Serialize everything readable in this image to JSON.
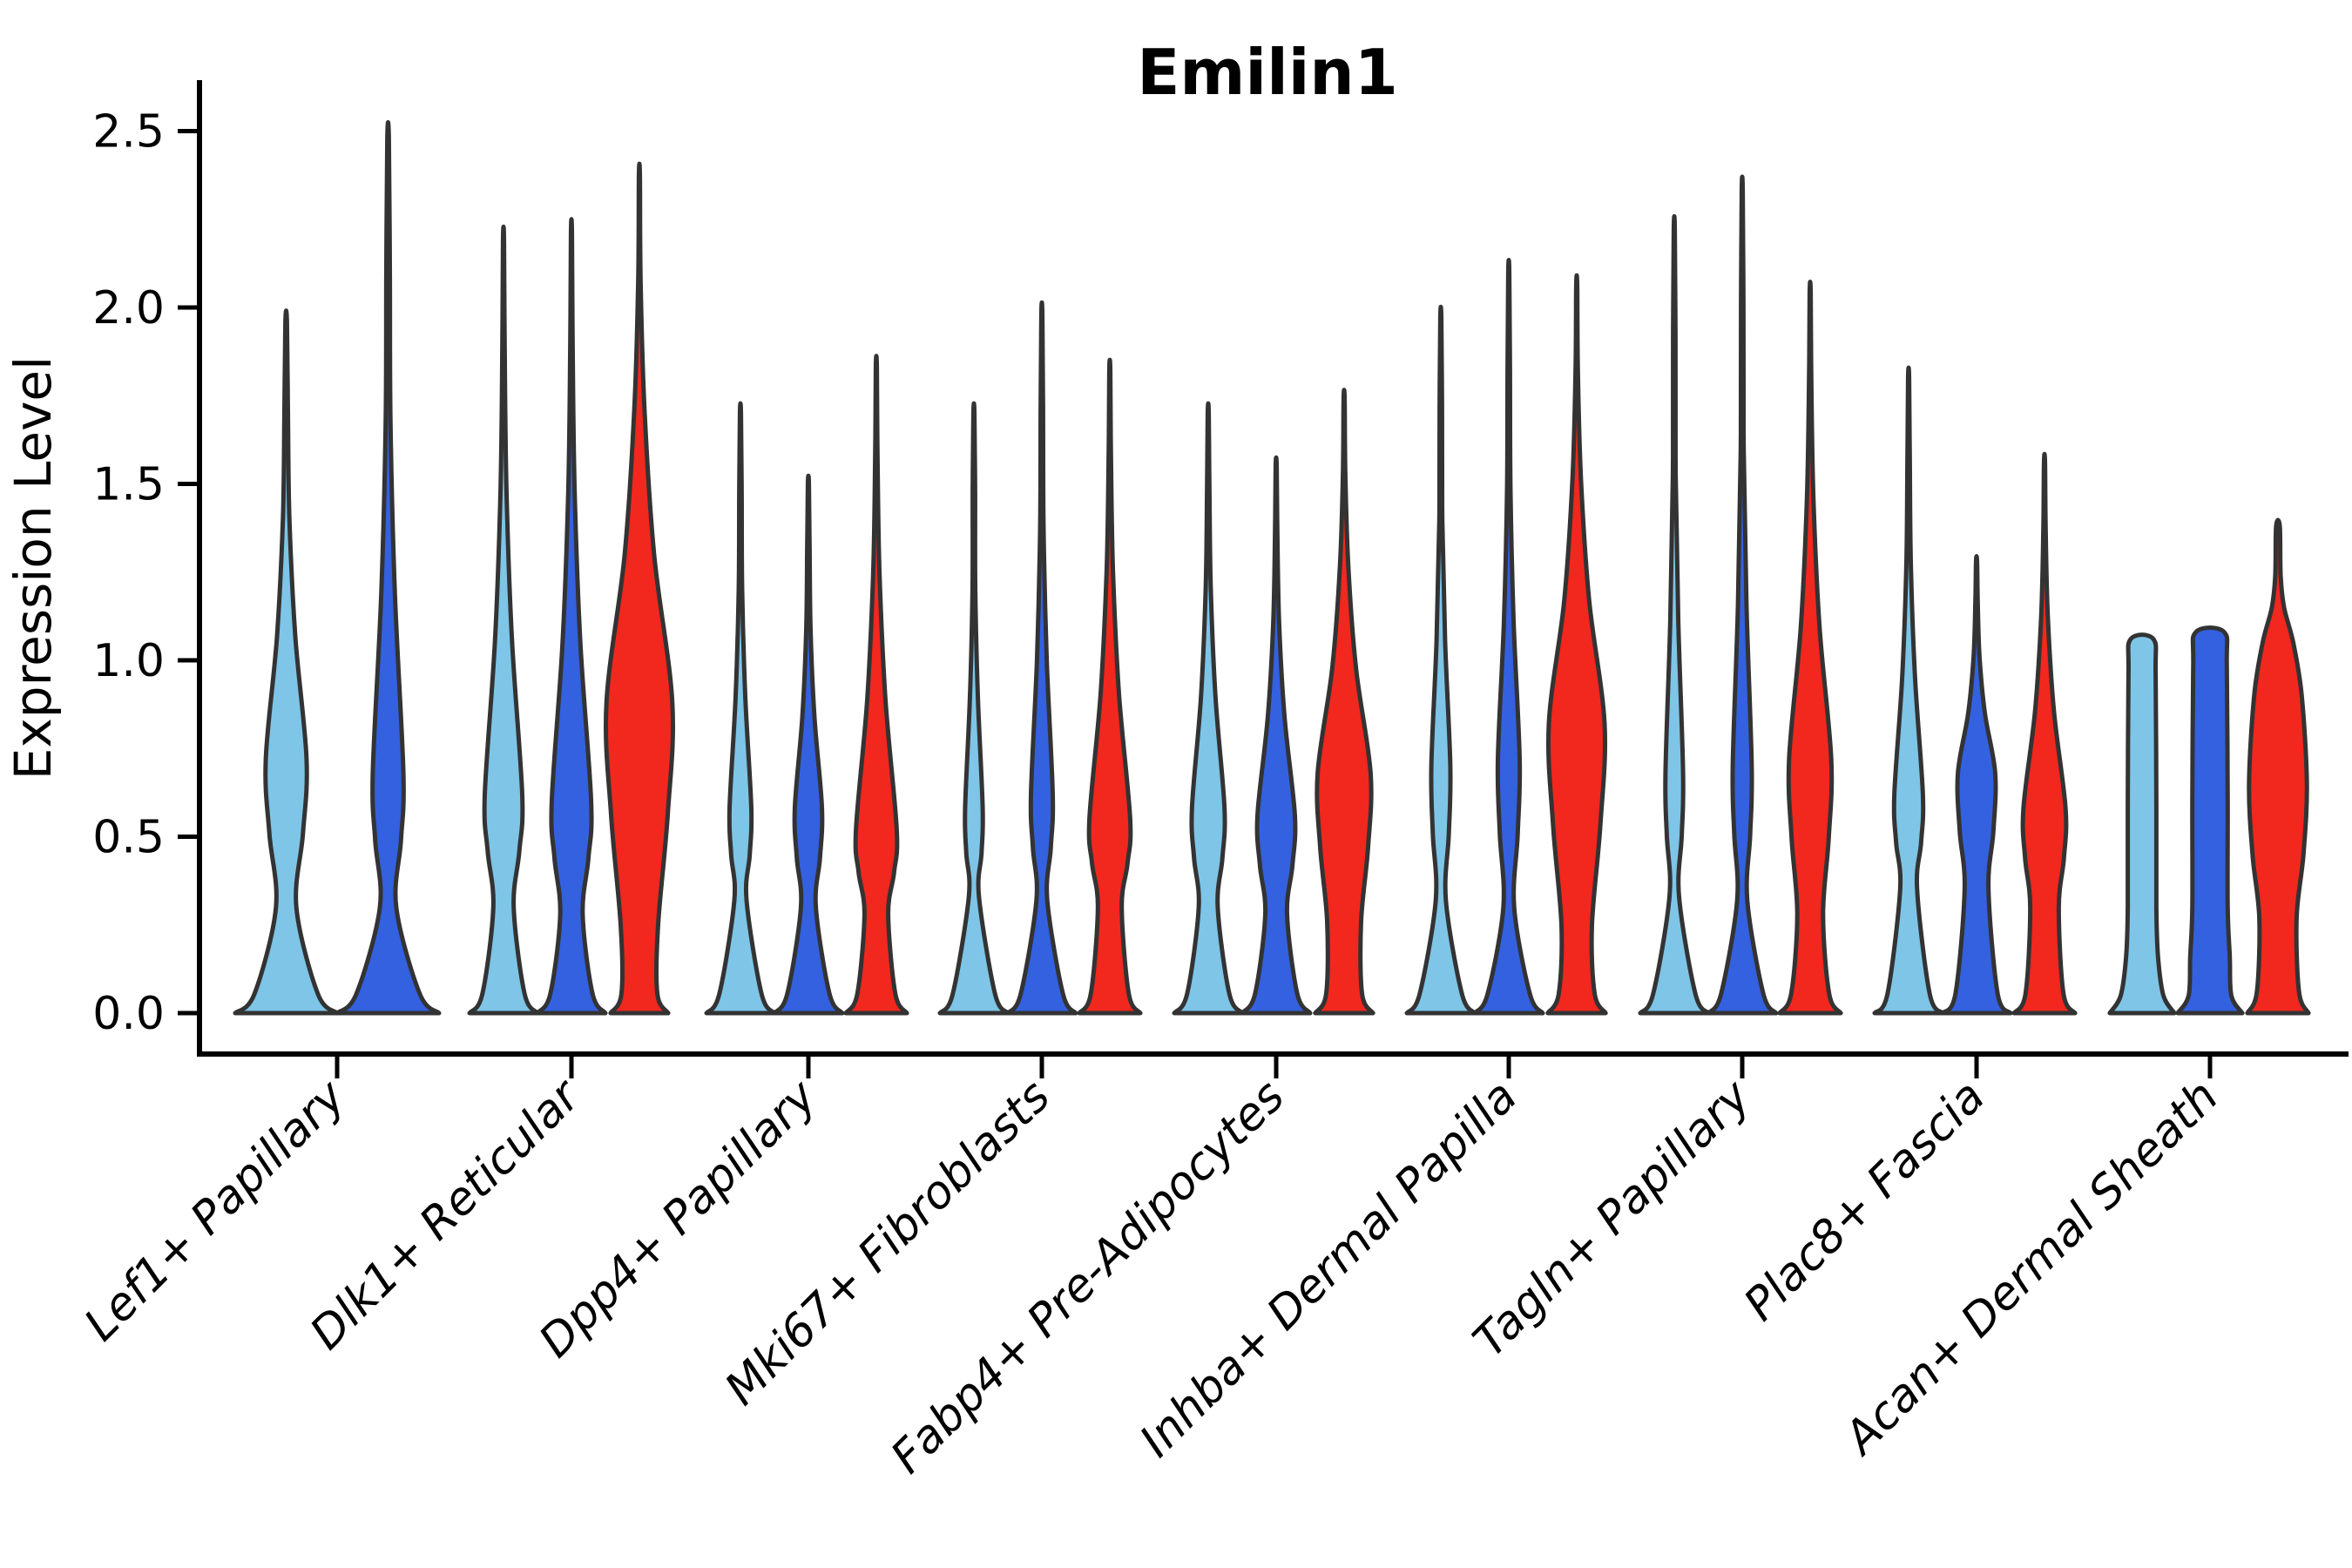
{
  "title": "Emilin1",
  "axes": {
    "ylabel": "Expression Level",
    "ytick_labels": [
      "0.0",
      "0.5",
      "1.0",
      "1.5",
      "2.0",
      "2.5"
    ]
  },
  "style": {
    "background": "#FFFFFF",
    "violin_edge_color": "#333333",
    "text_color": "#000000",
    "series_colors": [
      "#7EC5E8",
      "#3461E0",
      "#F2271E"
    ]
  },
  "chart_data": {
    "type": "violin",
    "title": "Emilin1",
    "xlabel": "",
    "ylabel": "Expression Level",
    "ylim": [
      0,
      2.64
    ],
    "yticks": [
      0.0,
      0.5,
      1.0,
      1.5,
      2.0,
      2.5
    ],
    "grid": false,
    "legend_position": "none",
    "categories": [
      "Lef1+ Papillary",
      "Dlk1+ Reticular",
      "Dpp4+ Papillary",
      "Mki67+ Fibroblasts",
      "Fabp4+ Pre-Adipocytes",
      "Inhba+ Dermal Papilla",
      "Tagln+ Papillary",
      "Plac8+ Fascia",
      "Acan+ Dermal Sheath"
    ],
    "series": [
      {
        "name": "sky-blue-series",
        "color": "#7EC5E8",
        "max_expression": [
          1.96,
          2.19,
          1.7,
          1.7,
          1.7,
          1.97,
          2.22,
          1.8,
          1.06
        ]
      },
      {
        "name": "royal-blue-series",
        "color": "#3461E0",
        "max_expression": [
          2.48,
          2.21,
          1.5,
          1.98,
          1.55,
          2.1,
          2.33,
          1.28,
          1.08
        ]
      },
      {
        "name": "red-series",
        "color": "#F2271E",
        "max_expression": [
          null,
          2.37,
          1.83,
          1.82,
          1.74,
          2.06,
          2.04,
          1.56,
          1.38
        ]
      }
    ],
    "violins": [
      {
        "ci": 0,
        "si": 0,
        "tip": 1.96,
        "base": 1.0,
        "waist": [
          0.3,
          0.2
        ],
        "bulge": [
          0.72,
          0.4
        ]
      },
      {
        "ci": 0,
        "si": 1,
        "tip": 2.48,
        "base": 1.0,
        "waist": [
          0.3,
          0.16
        ],
        "bulge": [
          0.68,
          0.3
        ]
      },
      {
        "ci": 1,
        "si": 0,
        "tip": 2.19,
        "base": 1.0,
        "waist": [
          0.3,
          0.3
        ],
        "bulge": [
          0.62,
          0.55
        ]
      },
      {
        "ci": 1,
        "si": 1,
        "tip": 2.21,
        "base": 1.0,
        "waist": [
          0.28,
          0.33
        ],
        "bulge": [
          0.6,
          0.58
        ]
      },
      {
        "ci": 1,
        "si": 2,
        "tip": 2.37,
        "base": 0.85,
        "waist": [
          0.25,
          0.55
        ],
        "bulge": [
          0.88,
          0.97
        ]
      },
      {
        "ci": 2,
        "si": 0,
        "tip": 1.7,
        "base": 1.0,
        "waist": [
          0.32,
          0.18
        ],
        "bulge": [
          0.58,
          0.32
        ]
      },
      {
        "ci": 2,
        "si": 1,
        "tip": 1.5,
        "base": 1.0,
        "waist": [
          0.3,
          0.22
        ],
        "bulge": [
          0.58,
          0.4
        ]
      },
      {
        "ci": 2,
        "si": 2,
        "tip": 1.83,
        "base": 0.9,
        "waist": [
          0.28,
          0.35
        ],
        "bulge": [
          0.52,
          0.6
        ]
      },
      {
        "ci": 3,
        "si": 0,
        "tip": 1.7,
        "base": 1.0,
        "waist": [
          0.33,
          0.15
        ],
        "bulge": [
          0.58,
          0.26
        ]
      },
      {
        "ci": 3,
        "si": 1,
        "tip": 1.98,
        "base": 1.0,
        "waist": [
          0.32,
          0.16
        ],
        "bulge": [
          0.62,
          0.32
        ]
      },
      {
        "ci": 3,
        "si": 2,
        "tip": 1.82,
        "base": 0.9,
        "waist": [
          0.3,
          0.35
        ],
        "bulge": [
          0.55,
          0.6
        ]
      },
      {
        "ci": 4,
        "si": 0,
        "tip": 1.7,
        "base": 1.0,
        "waist": [
          0.3,
          0.28
        ],
        "bulge": [
          0.58,
          0.48
        ]
      },
      {
        "ci": 4,
        "si": 1,
        "tip": 1.55,
        "base": 1.0,
        "waist": [
          0.28,
          0.32
        ],
        "bulge": [
          0.56,
          0.55
        ]
      },
      {
        "ci": 4,
        "si": 2,
        "tip": 1.74,
        "base": 0.85,
        "waist": [
          0.26,
          0.5
        ],
        "bulge": [
          0.68,
          0.78
        ]
      },
      {
        "ci": 5,
        "si": 0,
        "tip": 1.97,
        "base": 1.0,
        "waist": [
          0.32,
          0.15
        ],
        "bulge": [
          0.7,
          0.28
        ]
      },
      {
        "ci": 5,
        "si": 1,
        "tip": 2.1,
        "base": 1.0,
        "waist": [
          0.3,
          0.16
        ],
        "bulge": [
          0.72,
          0.32
        ]
      },
      {
        "ci": 5,
        "si": 2,
        "tip": 2.06,
        "base": 0.85,
        "waist": [
          0.25,
          0.45
        ],
        "bulge": [
          0.82,
          0.82
        ]
      },
      {
        "ci": 6,
        "si": 0,
        "tip": 2.22,
        "base": 1.0,
        "waist": [
          0.33,
          0.14
        ],
        "bulge": [
          0.68,
          0.26
        ]
      },
      {
        "ci": 6,
        "si": 1,
        "tip": 2.33,
        "base": 1.0,
        "waist": [
          0.32,
          0.15
        ],
        "bulge": [
          0.7,
          0.28
        ]
      },
      {
        "ci": 6,
        "si": 2,
        "tip": 2.04,
        "base": 0.9,
        "waist": [
          0.28,
          0.38
        ],
        "bulge": [
          0.72,
          0.62
        ]
      },
      {
        "ci": 7,
        "si": 0,
        "tip": 1.8,
        "base": 1.0,
        "waist": [
          0.35,
          0.25
        ],
        "bulge": [
          0.62,
          0.42
        ]
      },
      {
        "ci": 7,
        "si": 1,
        "tip": 1.28,
        "base": 1.0,
        "waist": [
          0.35,
          0.35
        ],
        "bulge": [
          0.68,
          0.55
        ]
      },
      {
        "ci": 7,
        "si": 2,
        "tip": 1.56,
        "base": 0.9,
        "waist": [
          0.3,
          0.42
        ],
        "bulge": [
          0.58,
          0.62
        ]
      },
      {
        "ci": 8,
        "si": 0,
        "tip": 1.06,
        "flat": true,
        "base": 0.95,
        "col": 0.42
      },
      {
        "ci": 8,
        "si": 1,
        "tip": 1.08,
        "flat": true,
        "base": 0.95,
        "col": 0.52
      },
      {
        "ci": 8,
        "si": 2,
        "tip": 1.38,
        "profile": [
          [
            0,
            0.9
          ],
          [
            0.06,
            0.62
          ],
          [
            0.27,
            0.55
          ],
          [
            0.45,
            0.75
          ],
          [
            0.65,
            0.85
          ],
          [
            0.9,
            0.7
          ],
          [
            1.05,
            0.45
          ],
          [
            1.15,
            0.18
          ],
          [
            1.24,
            0.08
          ],
          [
            1.38,
            0.055
          ]
        ]
      }
    ]
  }
}
